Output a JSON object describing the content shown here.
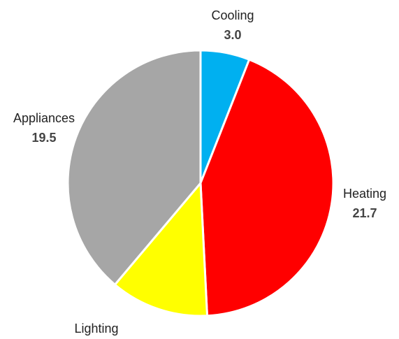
{
  "chart_data": {
    "type": "pie",
    "title": "",
    "slices": [
      {
        "label": "Cooling",
        "value": 3.0,
        "value_text": "3.0",
        "color": "#00B0F0"
      },
      {
        "label": "Heating",
        "value": 21.7,
        "value_text": "21.7",
        "color": "#FF0000"
      },
      {
        "label": "Lighting",
        "value": 6.0,
        "value_text": "",
        "color": "#FFFF00"
      },
      {
        "label": "Appliances",
        "value": 19.5,
        "value_text": "19.5",
        "color": "#A6A6A6"
      }
    ],
    "start_angle_deg": 0,
    "direction": "clockwise",
    "legend": "none",
    "data_labels": "outside"
  }
}
